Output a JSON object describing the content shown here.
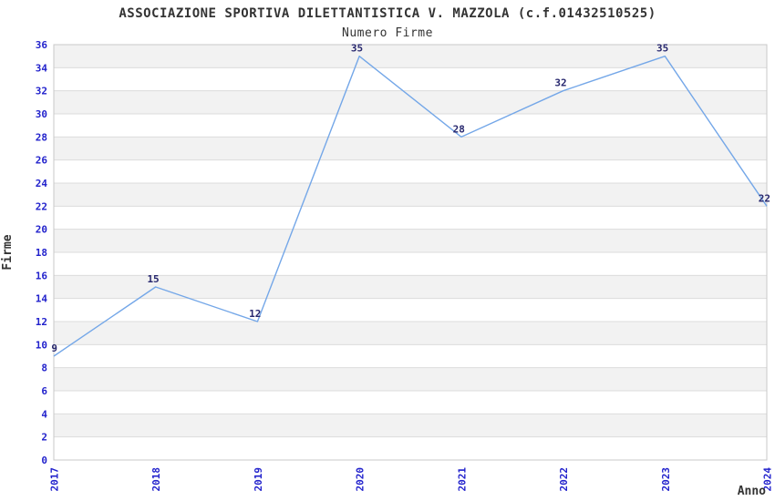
{
  "chart_data": {
    "type": "line",
    "title": "ASSOCIAZIONE SPORTIVA DILETTANTISTICA V. MAZZOLA (c.f.01432510525)",
    "subtitle": "Numero Firme",
    "xlabel": "Anno",
    "ylabel": "Firme",
    "categories": [
      "2017",
      "2018",
      "2019",
      "2020",
      "2021",
      "2022",
      "2023",
      "2024"
    ],
    "values": [
      9,
      15,
      12,
      35,
      28,
      32,
      35,
      22
    ],
    "ylim": [
      0,
      36
    ],
    "ytick_step": 2,
    "y_ticks": [
      0,
      2,
      4,
      6,
      8,
      10,
      12,
      14,
      16,
      18,
      20,
      22,
      24,
      26,
      28,
      30,
      32,
      34,
      36
    ],
    "grid": "horizontal-bands",
    "legend": "none",
    "colors": {
      "line": "#74a7e8",
      "tick_label": "#2222cc",
      "value_label": "#27276e",
      "title": "#333333",
      "band_gray": "#f2f2f2",
      "band_white": "#ffffff",
      "gridline": "#dcdcdc",
      "frame": "#c8c8c8"
    }
  }
}
